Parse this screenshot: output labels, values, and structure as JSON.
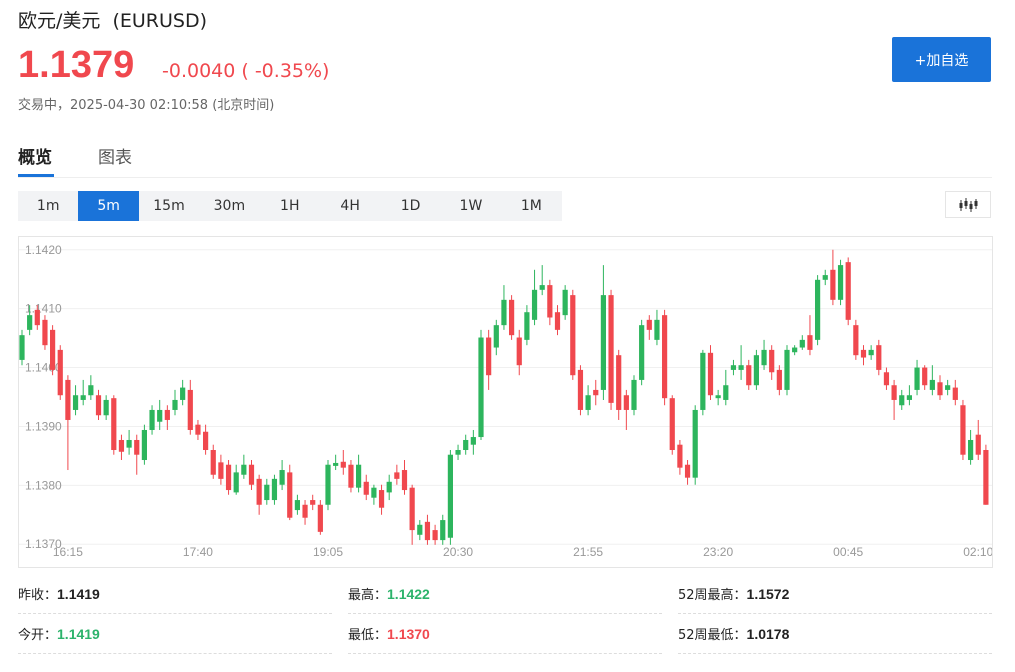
{
  "header": {
    "title": "欧元/美元  (EURUSD)",
    "price": "1.1379",
    "change": "-0.0040 ( -0.35%)",
    "status": "交易中，2025-04-30 02:10:58 (北京时间)",
    "button": "+加自选"
  },
  "tabs": [
    "概览",
    "图表"
  ],
  "periods": [
    "1m",
    "5m",
    "15m",
    "30m",
    "1H",
    "4H",
    "1D",
    "1W",
    "1M"
  ],
  "stats": [
    [
      {
        "label": "昨收：",
        "value": "1.1419"
      },
      {
        "label": "最高：",
        "value": "1.1422",
        "color": "#2cb36b"
      },
      {
        "label": "52周最高：",
        "value": "1.1572"
      }
    ],
    [
      {
        "label": "今开：",
        "value": "1.1419",
        "color": "#2cb36b"
      },
      {
        "label": "最低：",
        "value": "1.1370",
        "color": "#f0484e"
      },
      {
        "label": "52周最低：",
        "value": "1.0178"
      }
    ]
  ],
  "chart_data": {
    "type": "candlestick",
    "up_color": "#2db55d",
    "down_color": "#f0484e",
    "grid": true,
    "ylim": [
      1.1368,
      1.1422
    ],
    "yticks": [
      {
        "value": 1.137,
        "label": "1.1370"
      },
      {
        "value": 1.138,
        "label": "1.1380"
      },
      {
        "value": 1.139,
        "label": "1.1390"
      },
      {
        "value": 1.14,
        "label": "1.1400"
      },
      {
        "value": 1.141,
        "label": "1.1410"
      },
      {
        "value": 1.142,
        "label": "1.1420"
      }
    ],
    "categories": [
      null,
      null,
      null,
      null,
      null,
      null,
      "16:15",
      null,
      null,
      null,
      null,
      null,
      null,
      null,
      null,
      null,
      null,
      null,
      null,
      null,
      null,
      null,
      null,
      "17:40",
      null,
      null,
      null,
      null,
      null,
      null,
      null,
      null,
      null,
      null,
      null,
      null,
      null,
      null,
      null,
      null,
      "19:05",
      null,
      null,
      null,
      null,
      null,
      null,
      null,
      null,
      null,
      null,
      null,
      null,
      null,
      null,
      null,
      null,
      "20:30",
      null,
      null,
      null,
      null,
      null,
      null,
      null,
      null,
      null,
      null,
      null,
      null,
      null,
      null,
      null,
      null,
      "21:55",
      null,
      null,
      null,
      null,
      null,
      null,
      null,
      null,
      null,
      null,
      null,
      null,
      null,
      null,
      null,
      null,
      "23:20",
      null,
      null,
      null,
      null,
      null,
      null,
      null,
      null,
      null,
      null,
      null,
      null,
      null,
      null,
      null,
      null,
      "00:45",
      null,
      null,
      null,
      null,
      null,
      null,
      null,
      null,
      null,
      null,
      null,
      null,
      null,
      null,
      null,
      null,
      "02:10",
      null
    ],
    "open": [
      1.14013,
      1.14064,
      1.14098,
      1.14081,
      1.14064,
      1.1403,
      1.13979,
      1.13928,
      1.13945,
      1.13953,
      1.13953,
      1.13919,
      1.13948,
      1.13877,
      1.13864,
      1.13877,
      1.13843,
      1.13894,
      1.13908,
      1.13928,
      1.13928,
      1.13945,
      1.13962,
      1.13903,
      1.13891,
      1.1386,
      1.13839,
      1.13835,
      1.13788,
      1.13818,
      1.13835,
      1.13811,
      1.13775,
      1.13775,
      1.13801,
      1.13822,
      1.13758,
      1.13767,
      1.13775,
      1.13767,
      1.13767,
      1.13833,
      1.1384,
      1.13835,
      1.13796,
      1.13806,
      1.13779,
      1.13792,
      1.13788,
      1.13822,
      1.13826,
      1.13796,
      1.13716,
      1.13738,
      1.13724,
      1.13707,
      1.13711,
      1.13852,
      1.1386,
      1.13869,
      1.13882,
      1.14051,
      1.14034,
      1.14072,
      1.14115,
      1.14051,
      1.14047,
      1.14081,
      1.14132,
      1.1414,
      1.14094,
      1.14089,
      1.14123,
      1.13996,
      1.13928,
      1.13962,
      1.13962,
      1.14123,
      1.14021,
      1.13953,
      1.13928,
      1.13979,
      1.14081,
      1.14047,
      1.14089,
      1.13948,
      1.13869,
      1.13835,
      1.13813,
      1.13928,
      1.14025,
      1.13948,
      1.13945,
      1.13996,
      1.13996,
      1.14004,
      1.1397,
      1.14004,
      1.1403,
      1.13996,
      1.13962,
      1.14026,
      1.14034,
      1.14055,
      1.14047,
      1.14149,
      1.14166,
      1.14115,
      1.14179,
      1.14072,
      1.1403,
      1.14021,
      1.14038,
      1.13992,
      1.1397,
      1.13936,
      1.13945,
      1.13962,
      1.14,
      1.13962,
      1.13975,
      1.13962,
      1.13966,
      1.13936,
      1.13843,
      1.13886,
      1.1386
    ],
    "high": [
      1.14064,
      1.14106,
      1.14106,
      1.14089,
      1.14072,
      1.14038,
      1.13987,
      1.1397,
      1.13979,
      1.13987,
      1.13962,
      1.13953,
      1.13953,
      1.13886,
      1.13894,
      1.13886,
      1.13903,
      1.13936,
      1.13945,
      1.13936,
      1.13962,
      1.13979,
      1.13979,
      1.13911,
      1.13903,
      1.13869,
      1.13852,
      1.13843,
      1.13835,
      1.13852,
      1.13843,
      1.13818,
      1.13811,
      1.13818,
      1.13843,
      1.13835,
      1.13784,
      1.13775,
      1.13784,
      1.13775,
      1.13843,
      1.13852,
      1.1386,
      1.13843,
      1.13852,
      1.13818,
      1.13801,
      1.13801,
      1.13818,
      1.13835,
      1.13843,
      1.13801,
      1.13741,
      1.1375,
      1.13733,
      1.1375,
      1.1386,
      1.13869,
      1.13886,
      1.13894,
      1.14064,
      1.14064,
      1.14081,
      1.1414,
      1.14123,
      1.14064,
      1.14106,
      1.14166,
      1.14174,
      1.14149,
      1.14106,
      1.1414,
      1.14132,
      1.14004,
      1.1397,
      1.13979,
      1.14174,
      1.14132,
      1.1403,
      1.13962,
      1.13987,
      1.14081,
      1.14089,
      1.14098,
      1.14098,
      1.13953,
      1.13877,
      1.13843,
      1.13936,
      1.1403,
      1.14038,
      1.13962,
      1.13996,
      1.14013,
      1.14038,
      1.14013,
      1.1403,
      1.14047,
      1.14038,
      1.14004,
      1.14038,
      1.14038,
      1.14055,
      1.14089,
      1.14157,
      1.14166,
      1.142,
      1.14183,
      1.14187,
      1.14081,
      1.14038,
      1.14038,
      1.14047,
      1.14,
      1.13979,
      1.13962,
      1.1397,
      1.14013,
      1.14004,
      1.14004,
      1.13987,
      1.13979,
      1.13979,
      1.13945,
      1.13894,
      1.13911,
      1.13869
    ],
    "low": [
      1.14004,
      1.14055,
      1.14064,
      1.1403,
      1.13987,
      1.13945,
      1.13826,
      1.13919,
      1.13936,
      1.13945,
      1.13911,
      1.13911,
      1.13852,
      1.13843,
      1.13852,
      1.13818,
      1.13835,
      1.13886,
      1.13894,
      1.13894,
      1.13919,
      1.13936,
      1.13886,
      1.13877,
      1.13852,
      1.13811,
      1.13801,
      1.13784,
      1.13784,
      1.13811,
      1.13792,
      1.1375,
      1.13767,
      1.13767,
      1.13792,
      1.13741,
      1.1375,
      1.13733,
      1.13758,
      1.13716,
      1.13758,
      1.13826,
      1.13818,
      1.13788,
      1.13788,
      1.13775,
      1.13767,
      1.1375,
      1.13775,
      1.13801,
      1.13784,
      1.13699,
      1.13707,
      1.13699,
      1.13699,
      1.13699,
      1.13699,
      1.13843,
      1.13852,
      1.13852,
      1.13877,
      1.13962,
      1.14021,
      1.14064,
      1.14047,
      1.13987,
      1.14038,
      1.14072,
      1.14123,
      1.14072,
      1.14055,
      1.14081,
      1.13979,
      1.13919,
      1.13919,
      1.13936,
      1.13945,
      1.13928,
      1.13911,
      1.13894,
      1.13919,
      1.1397,
      1.14047,
      1.14038,
      1.13936,
      1.13852,
      1.13818,
      1.13801,
      1.13801,
      1.13919,
      1.13945,
      1.13936,
      1.13936,
      1.13987,
      1.13979,
      1.13962,
      1.13962,
      1.13996,
      1.13979,
      1.13953,
      1.13953,
      1.14021,
      1.1403,
      1.14021,
      1.14038,
      1.1414,
      1.14106,
      1.14106,
      1.14072,
      1.14013,
      1.14004,
      1.14013,
      1.13987,
      1.13962,
      1.13911,
      1.13928,
      1.13936,
      1.13953,
      1.13962,
      1.13953,
      1.13945,
      1.13953,
      1.13936,
      1.13843,
      1.13835,
      1.13843,
      1.13767
    ],
    "close": [
      1.14055,
      1.14089,
      1.14072,
      1.14038,
      1.13996,
      1.13953,
      1.13911,
      1.13953,
      1.13953,
      1.1397,
      1.13919,
      1.13945,
      1.1386,
      1.13857,
      1.13877,
      1.13852,
      1.13894,
      1.13928,
      1.13928,
      1.13911,
      1.13945,
      1.13966,
      1.13894,
      1.13886,
      1.1386,
      1.13818,
      1.13811,
      1.13792,
      1.13822,
      1.13835,
      1.13801,
      1.13767,
      1.13801,
      1.13811,
      1.13826,
      1.13745,
      1.13775,
      1.13745,
      1.13767,
      1.13721,
      1.13835,
      1.13838,
      1.1383,
      1.13796,
      1.13835,
      1.13784,
      1.13796,
      1.13762,
      1.13806,
      1.13811,
      1.13792,
      1.13724,
      1.13733,
      1.13707,
      1.13707,
      1.13741,
      1.13852,
      1.1386,
      1.13877,
      1.13882,
      1.14051,
      1.13987,
      1.14072,
      1.14115,
      1.14055,
      1.14004,
      1.14094,
      1.14132,
      1.1414,
      1.14085,
      1.14064,
      1.14132,
      1.13987,
      1.13928,
      1.13953,
      1.13953,
      1.14123,
      1.1394,
      1.13928,
      1.13928,
      1.13979,
      1.14072,
      1.14064,
      1.14081,
      1.13948,
      1.1386,
      1.1383,
      1.13813,
      1.13928,
      1.14025,
      1.13953,
      1.13953,
      1.1397,
      1.14004,
      1.14004,
      1.1397,
      1.14021,
      1.1403,
      1.13992,
      1.13962,
      1.1403,
      1.14034,
      1.14047,
      1.1403,
      1.14149,
      1.14157,
      1.14115,
      1.14174,
      1.14081,
      1.14021,
      1.14017,
      1.1403,
      1.13996,
      1.1397,
      1.13945,
      1.13953,
      1.13953,
      1.14,
      1.1397,
      1.13979,
      1.13953,
      1.1397,
      1.13945,
      1.13852,
      1.13877,
      1.13852,
      1.13767
    ]
  }
}
